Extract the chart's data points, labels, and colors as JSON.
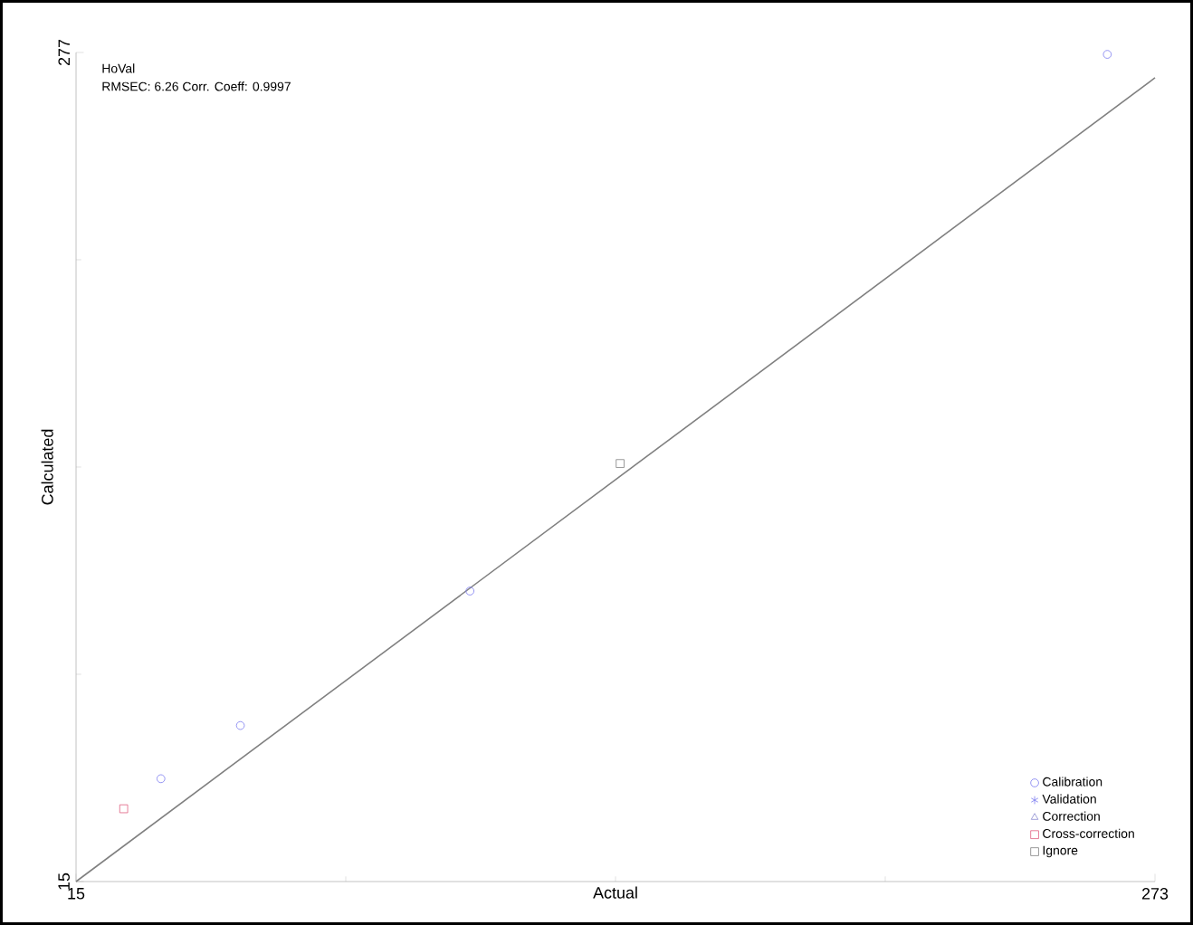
{
  "chart_data": {
    "type": "scatter",
    "xlabel": "Actual",
    "ylabel": "Calculated",
    "annotations": [
      "HoVal",
      "RMSEC: 6.26  Corr. Coeff: 0.9997"
    ],
    "xlim": [
      15,
      273
    ],
    "ylim": [
      15,
      277
    ],
    "xticks": [
      15,
      273
    ],
    "yticks": [
      15,
      277
    ],
    "legend": "bottom right",
    "grid": false,
    "series": [
      {
        "name": "Calibration",
        "color": "#7b7bf0",
        "marker": "circle",
        "x": [
          35.3,
          54.3,
          109.2,
          261.6
        ],
        "values": [
          47.5,
          64.3,
          106.8,
          276.4
        ]
      },
      {
        "name": "Validation",
        "color": "#7b7bf0",
        "marker": "star"
      },
      {
        "name": "Correction",
        "color": "#8a8ad0",
        "marker": "triangle"
      },
      {
        "name": "Cross-correction",
        "color": "#e06080",
        "marker": "square",
        "x": [
          26.4
        ],
        "values": [
          38.0
        ]
      },
      {
        "name": "Ignore",
        "color": "#808080",
        "marker": "square",
        "x": [
          145.1
        ],
        "values": [
          147.1
        ]
      },
      {
        "type": "line",
        "color": "#808080",
        "marker": "none",
        "x": [
          15,
          273
        ],
        "values": [
          15,
          269
        ]
      }
    ]
  }
}
